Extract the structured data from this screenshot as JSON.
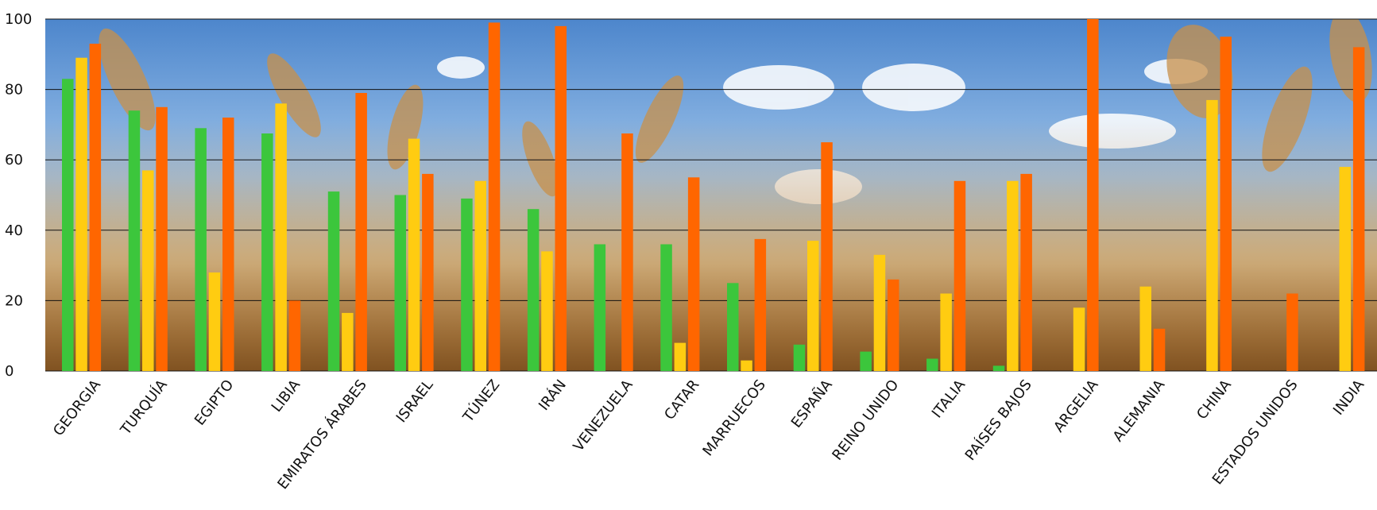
{
  "chart_data": {
    "type": "bar",
    "title": "",
    "xlabel": "",
    "ylabel": "",
    "ylim": [
      0,
      100
    ],
    "yticks": [
      0,
      20,
      40,
      60,
      80,
      100
    ],
    "grid": true,
    "legend": "none",
    "colors": [
      "#3cc63c",
      "#ffcc11",
      "#ff6600"
    ],
    "categories": [
      "GEORGIA",
      "TURQUÍA",
      "EGIPTO",
      "LIBIA",
      "EMIRATOS ÁRABES",
      "ISRAEL",
      "TÚNEZ",
      "IRÁN",
      "VENEZUELA",
      "CATAR",
      "MARRUECOS",
      "ESPAÑA",
      "REINO UNIDO",
      "ITALIA",
      "PAÍSES BAJOS",
      "ARGELIA",
      "ALEMANIA",
      "CHINA",
      "ESTADOS UNIDOS",
      "INDIA"
    ],
    "series": [
      {
        "values": [
          83,
          74,
          69,
          67.5,
          51,
          50,
          49,
          46,
          36,
          36,
          25,
          7.5,
          5.5,
          3.5,
          1.5,
          0,
          0,
          0,
          0,
          0
        ]
      },
      {
        "values": [
          89,
          57,
          28,
          76,
          16.5,
          66,
          54,
          34,
          0,
          8,
          3,
          37,
          33,
          22,
          54,
          18,
          24,
          77,
          0,
          58
        ]
      },
      {
        "values": [
          93,
          75,
          72,
          20,
          79,
          56,
          99,
          98,
          67.5,
          55,
          37.5,
          65,
          26,
          54,
          56,
          100,
          12,
          95,
          22,
          92
        ]
      }
    ]
  }
}
